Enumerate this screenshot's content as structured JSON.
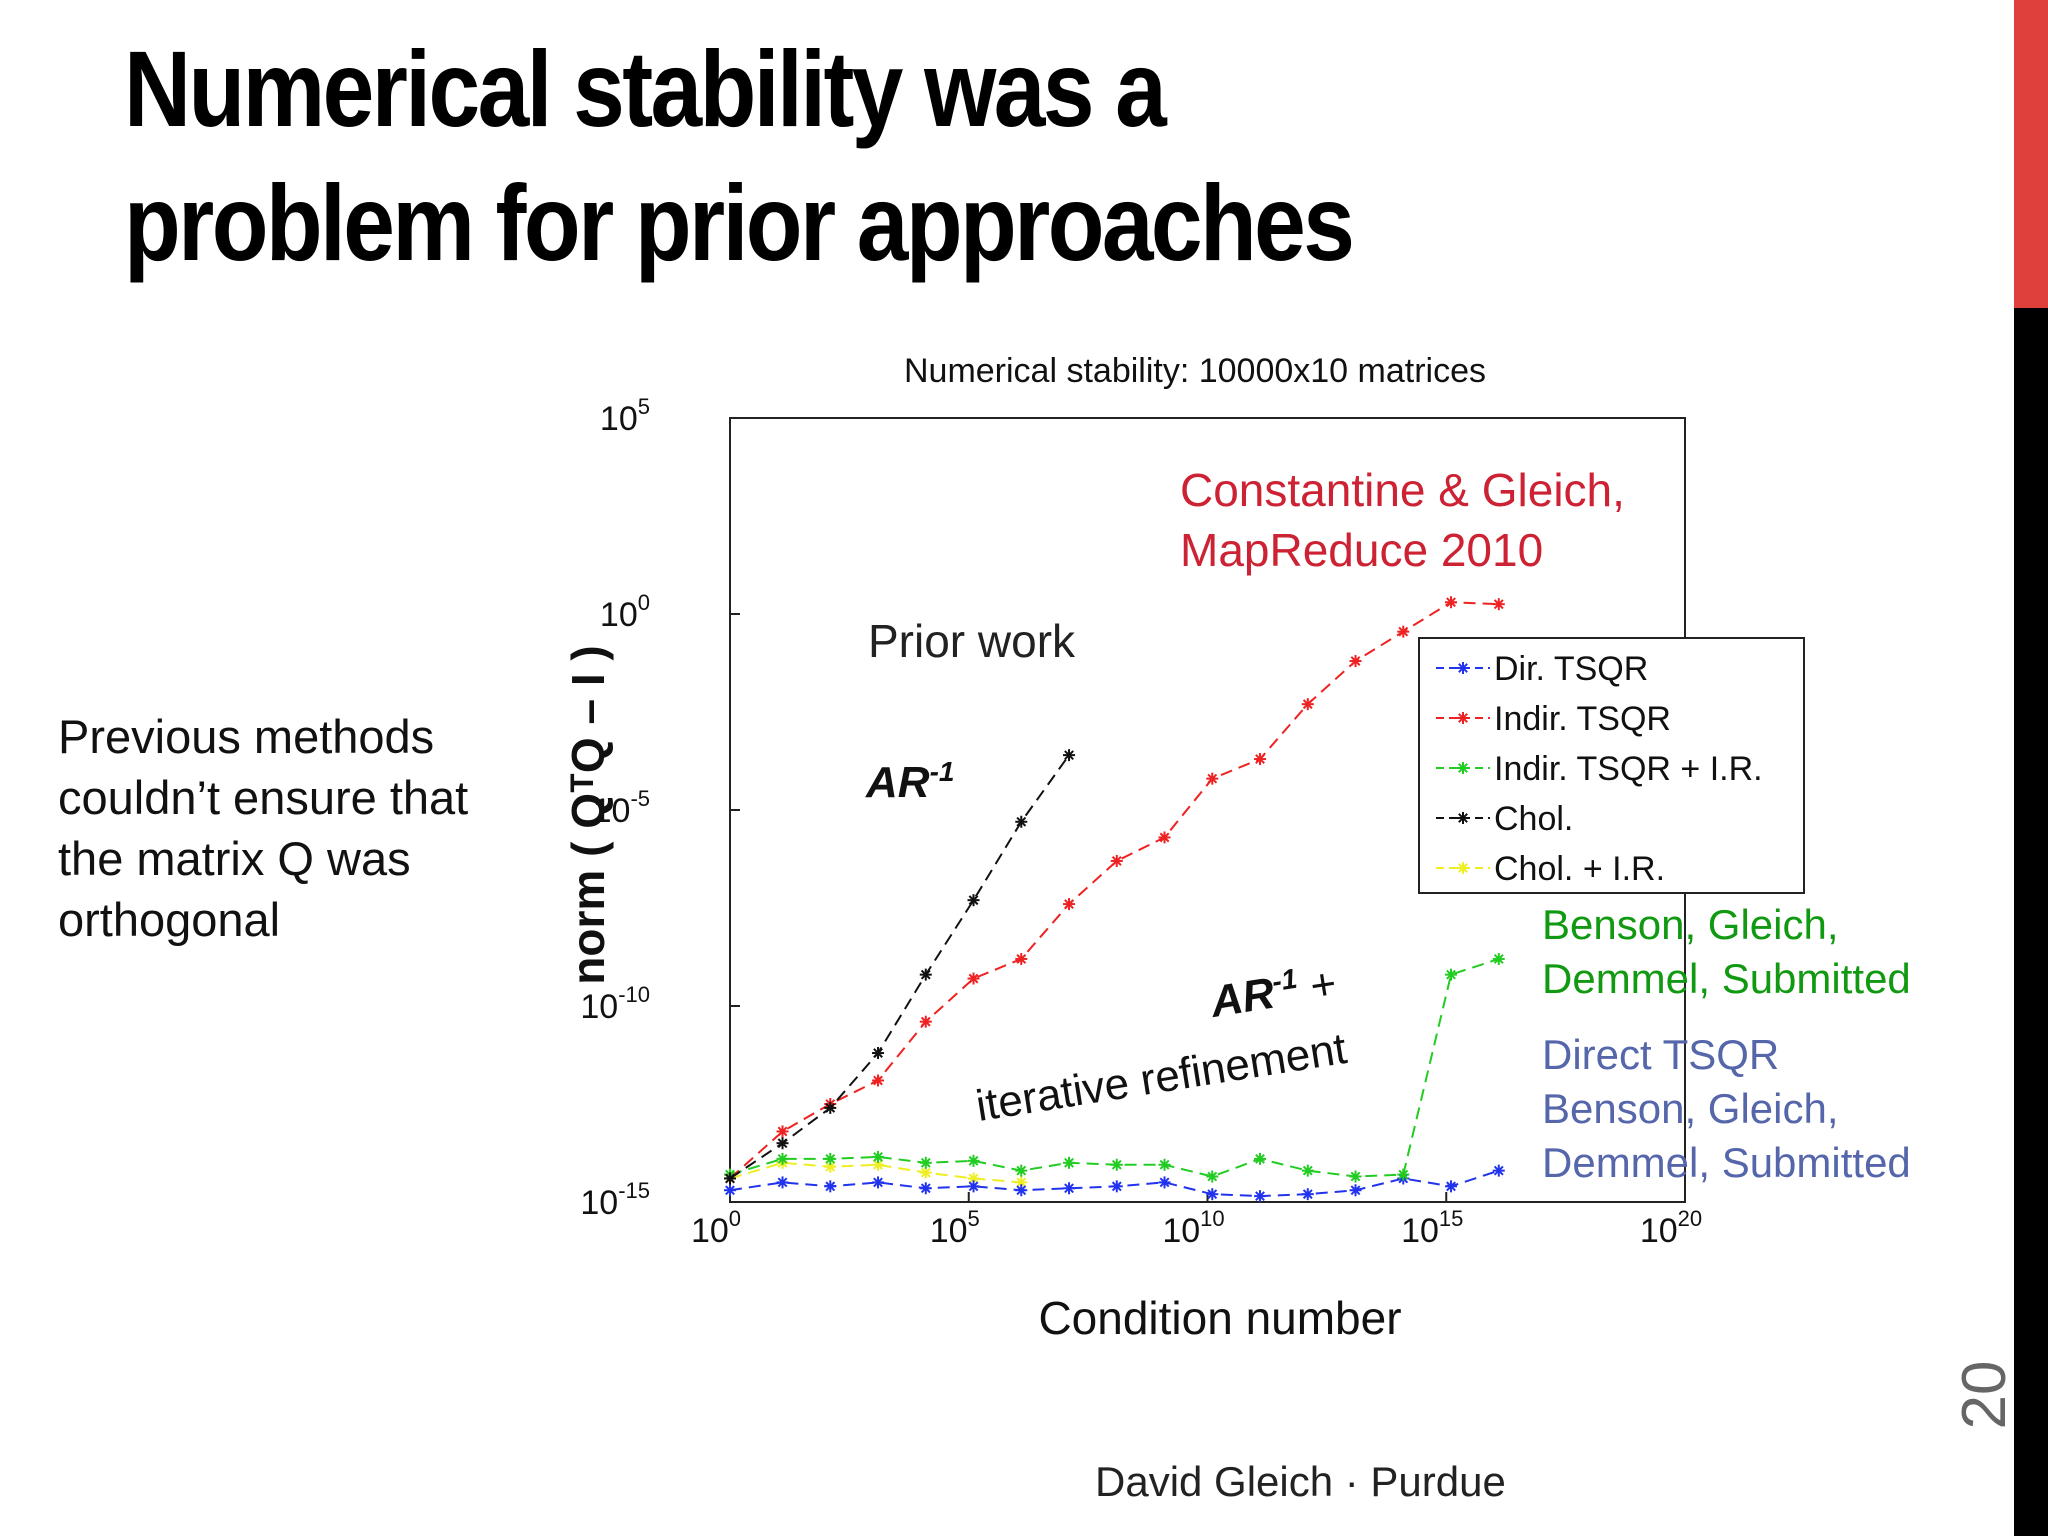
{
  "slide": {
    "title_line1": "Numerical stability was a",
    "title_line2": "problem for prior approaches",
    "side_note": "Previous methods couldn’t ensure that the matrix Q was orthogonal",
    "footer": "David Gleich · Purdue",
    "page_number": "20",
    "accent_color": "#e0403c"
  },
  "chart_data": {
    "type": "line",
    "title": "Numerical stability: 10000x10 matrices",
    "xlabel": "Condition number",
    "ylabel": "norm ( QᵀQ – I )",
    "x_scale": "log",
    "y_scale": "log",
    "xlim_exponent": [
      0,
      20
    ],
    "ylim_exponent": [
      -15,
      5
    ],
    "x_ticks": [
      {
        "base": "10",
        "exp": "0"
      },
      {
        "base": "10",
        "exp": "5"
      },
      {
        "base": "10",
        "exp": "10"
      },
      {
        "base": "10",
        "exp": "15"
      },
      {
        "base": "10",
        "exp": "20"
      }
    ],
    "y_ticks": [
      {
        "base": "10",
        "exp": "5"
      },
      {
        "base": "10",
        "exp": "0"
      },
      {
        "base": "10",
        "exp": "-5"
      },
      {
        "base": "10",
        "exp": "-10"
      },
      {
        "base": "10",
        "exp": "-15"
      }
    ],
    "grid": false,
    "legend_position": "right",
    "series": [
      {
        "name": "Dir. TSQR",
        "color": "#2233ee",
        "x_exp": [
          0,
          1.1,
          2.1,
          3.1,
          4.1,
          5.1,
          6.1,
          7.1,
          8.1,
          9.1,
          10.1,
          11.1,
          12.1,
          13.1,
          14.1,
          15.1,
          16.1
        ],
        "y_exp": [
          -14.7,
          -14.5,
          -14.6,
          -14.5,
          -14.65,
          -14.6,
          -14.7,
          -14.65,
          -14.6,
          -14.5,
          -14.8,
          -14.85,
          -14.8,
          -14.7,
          -14.4,
          -14.6,
          -14.2
        ]
      },
      {
        "name": "Indir. TSQR",
        "color": "#ee2222",
        "x_exp": [
          0,
          1.1,
          2.1,
          3.1,
          4.1,
          5.1,
          6.1,
          7.1,
          8.1,
          9.1,
          10.1,
          11.1,
          12.1,
          13.1,
          14.1,
          15.1,
          16.1
        ],
        "y_exp": [
          -14.4,
          -13.2,
          -12.5,
          -11.9,
          -10.4,
          -9.3,
          -8.8,
          -7.4,
          -6.3,
          -5.7,
          -4.2,
          -3.7,
          -2.3,
          -1.2,
          -0.45,
          0.3,
          0.25
        ]
      },
      {
        "name": "Indir. TSQR + I.R.",
        "color": "#22cc22",
        "x_exp": [
          0,
          1.1,
          2.1,
          3.1,
          4.1,
          5.1,
          6.1,
          7.1,
          8.1,
          9.1,
          10.1,
          11.1,
          12.1,
          13.1,
          14.1,
          15.1,
          16.1
        ],
        "y_exp": [
          -14.3,
          -13.9,
          -13.9,
          -13.85,
          -14.0,
          -13.95,
          -14.2,
          -14.0,
          -14.05,
          -14.05,
          -14.35,
          -13.9,
          -14.2,
          -14.35,
          -14.3,
          -9.2,
          -8.8
        ]
      },
      {
        "name": "Chol.",
        "color": "#111111",
        "x_exp": [
          0,
          1.1,
          2.1,
          3.1,
          4.1,
          5.1,
          6.1,
          7.1
        ],
        "y_exp": [
          -14.4,
          -13.5,
          -12.6,
          -11.2,
          -9.2,
          -7.3,
          -5.3,
          -3.6
        ]
      },
      {
        "name": "Chol. + I.R.",
        "color": "#eeee22",
        "x_exp": [
          0,
          1.1,
          2.1,
          3.1,
          4.1,
          5.1,
          6.1
        ],
        "y_exp": [
          -14.4,
          -14.0,
          -14.1,
          -14.05,
          -14.25,
          -14.4,
          -14.5
        ]
      }
    ],
    "annotations": {
      "prior_work": "Prior work",
      "ar_inv": "AR",
      "ar_inv_sup": "-1",
      "ar_ir_main": "AR",
      "ar_ir_sup": "-1",
      "ar_ir_plus": " +",
      "ar_ir_line2": "iterative refinement",
      "cg_line1": "Constantine & Gleich,",
      "cg_line2": "MapReduce 2010",
      "bgd_line1": "Benson, Gleich,",
      "bgd_line2": "Demmel, Submitted",
      "direct_line1": "Direct TSQR",
      "direct_line2": "Benson, Gleich,",
      "direct_line3": "Demmel, Submitted",
      "cg_color": "#cc2233",
      "bgd_color": "#119911",
      "direct_color": "#5566aa"
    }
  }
}
